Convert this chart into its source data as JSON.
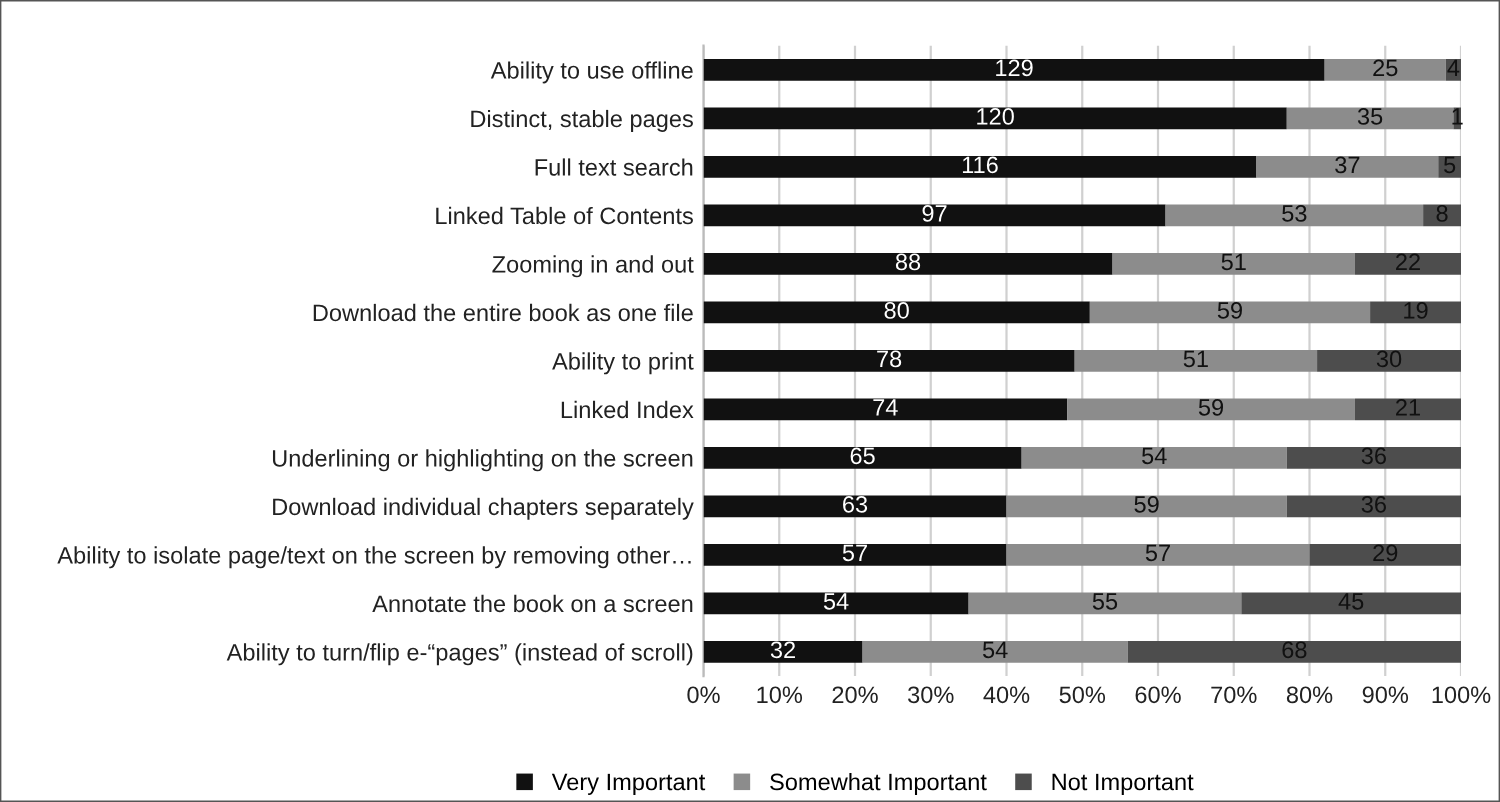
{
  "chart_data": {
    "type": "bar",
    "orientation": "horizontal",
    "stacked": true,
    "categories": [
      "Ability to use offline",
      "Distinct, stable pages",
      "Full text search",
      "Linked Table of Contents",
      "Zooming in and out",
      "Download the entire book as one file",
      "Ability to print",
      "Linked Index",
      "Underlining or highlighting on the screen",
      "Download individual chapters separately",
      "Ability to isolate page/text on the screen by removing other…",
      "Annotate the book on a screen",
      "Ability to turn/flip e-“pages” (instead of scroll)"
    ],
    "series": [
      {
        "name": "Very Important",
        "color": "#111111",
        "values": [
          82,
          77,
          73,
          61,
          54,
          51,
          49,
          48,
          42,
          40,
          40,
          35,
          21
        ]
      },
      {
        "name": "Somewhat Important",
        "color": "#8c8c8c",
        "values": [
          16,
          22,
          24,
          34,
          32,
          37,
          32,
          38,
          35,
          37,
          40,
          36,
          35
        ]
      },
      {
        "name": "Not Important",
        "color": "#4d4d4d",
        "values": [
          2,
          1,
          3,
          5,
          14,
          12,
          19,
          14,
          23,
          23,
          20,
          29,
          44
        ]
      }
    ],
    "annotations": [
      {
        "text": "129",
        "x": 41,
        "y": "Ability to use offline"
      },
      {
        "text": "120",
        "x": 38.5,
        "y": "Distinct, stable pages"
      },
      {
        "text": "116",
        "x": 36.5,
        "y": "Full text search"
      },
      {
        "text": "97",
        "x": 30.5,
        "y": "Linked Table of Contents"
      },
      {
        "text": "88",
        "x": 27,
        "y": "Zooming in and out"
      },
      {
        "text": "80",
        "x": 25.5,
        "y": "Download the entire book as one file"
      },
      {
        "text": "78",
        "x": 24.5,
        "y": "Ability to print"
      },
      {
        "text": "74",
        "x": 24,
        "y": "Linked Index"
      },
      {
        "text": "65",
        "x": 21,
        "y": "Underlining or highlighting on the screen"
      },
      {
        "text": "63",
        "x": 20,
        "y": "Download individual chapters separately"
      },
      {
        "text": "57",
        "x": 20,
        "y": "Ability to isolate page/text on the screen by removing other…"
      },
      {
        "text": "54",
        "x": 17.5,
        "y": "Annotate the book on a screen"
      },
      {
        "text": "32",
        "x": 10.5,
        "y": "Ability to turn/flip e-“pages” (instead of scroll)"
      },
      {
        "text": "25",
        "x": 90,
        "y": "Ability to use offline"
      },
      {
        "text": "35",
        "x": 88,
        "y": "Distinct, stable pages"
      },
      {
        "text": "37",
        "x": 85,
        "y": "Full text search"
      },
      {
        "text": "53",
        "x": 78,
        "y": "Linked Table of Contents"
      },
      {
        "text": "51",
        "x": 70,
        "y": "Zooming in and out"
      },
      {
        "text": "59",
        "x": 69.5,
        "y": "Download the entire book as one file"
      },
      {
        "text": "51",
        "x": 65,
        "y": "Ability to print"
      },
      {
        "text": "59",
        "x": 67,
        "y": "Linked Index"
      },
      {
        "text": "54",
        "x": 59.5,
        "y": "Underlining or highlighting on the screen"
      },
      {
        "text": "59",
        "x": 58.5,
        "y": "Download individual chapters separately"
      },
      {
        "text": "57",
        "x": 60,
        "y": "Ability to isolate page/text on the screen by removing other…"
      },
      {
        "text": "55",
        "x": 53,
        "y": "Annotate the book on a screen"
      },
      {
        "text": "54",
        "x": 38.5,
        "y": "Ability to turn/flip e-“pages” (instead of scroll)"
      },
      {
        "text": "4",
        "x": 99,
        "y": "Ability to use offline"
      },
      {
        "text": "1",
        "x": 99.5,
        "y": "Distinct, stable pages"
      },
      {
        "text": "5",
        "x": 98.5,
        "y": "Full text search"
      },
      {
        "text": "8",
        "x": 97.5,
        "y": "Linked Table of Contents"
      },
      {
        "text": "22",
        "x": 93,
        "y": "Zooming in and out"
      },
      {
        "text": "19",
        "x": 94,
        "y": "Download the entire book as one file"
      },
      {
        "text": "30",
        "x": 90.5,
        "y": "Ability to print"
      },
      {
        "text": "21",
        "x": 93,
        "y": "Linked Index"
      },
      {
        "text": "36",
        "x": 88.5,
        "y": "Underlining or highlighting on the screen"
      },
      {
        "text": "36",
        "x": 88.5,
        "y": "Download individual chapters separately"
      },
      {
        "text": "29",
        "x": 90,
        "y": "Ability to isolate page/text on the screen by removing other…"
      },
      {
        "text": "45",
        "x": 85.5,
        "y": "Annotate the book on a screen"
      },
      {
        "text": "68",
        "x": 78,
        "y": "Ability to turn/flip e-“pages” (instead of scroll)"
      }
    ],
    "xlim": [
      0,
      100
    ],
    "xticks": [
      {
        "value": 0,
        "label": "0%"
      },
      {
        "value": 10,
        "label": "10%"
      },
      {
        "value": 20,
        "label": "20%"
      },
      {
        "value": 30,
        "label": "30%"
      },
      {
        "value": 40,
        "label": "40%"
      },
      {
        "value": 50,
        "label": "50%"
      },
      {
        "value": 60,
        "label": "60%"
      },
      {
        "value": 70,
        "label": "70%"
      },
      {
        "value": 80,
        "label": "80%"
      },
      {
        "value": 90,
        "label": "90%"
      },
      {
        "value": 100,
        "label": "100%"
      }
    ],
    "grid": "x",
    "legend": "bottom"
  }
}
